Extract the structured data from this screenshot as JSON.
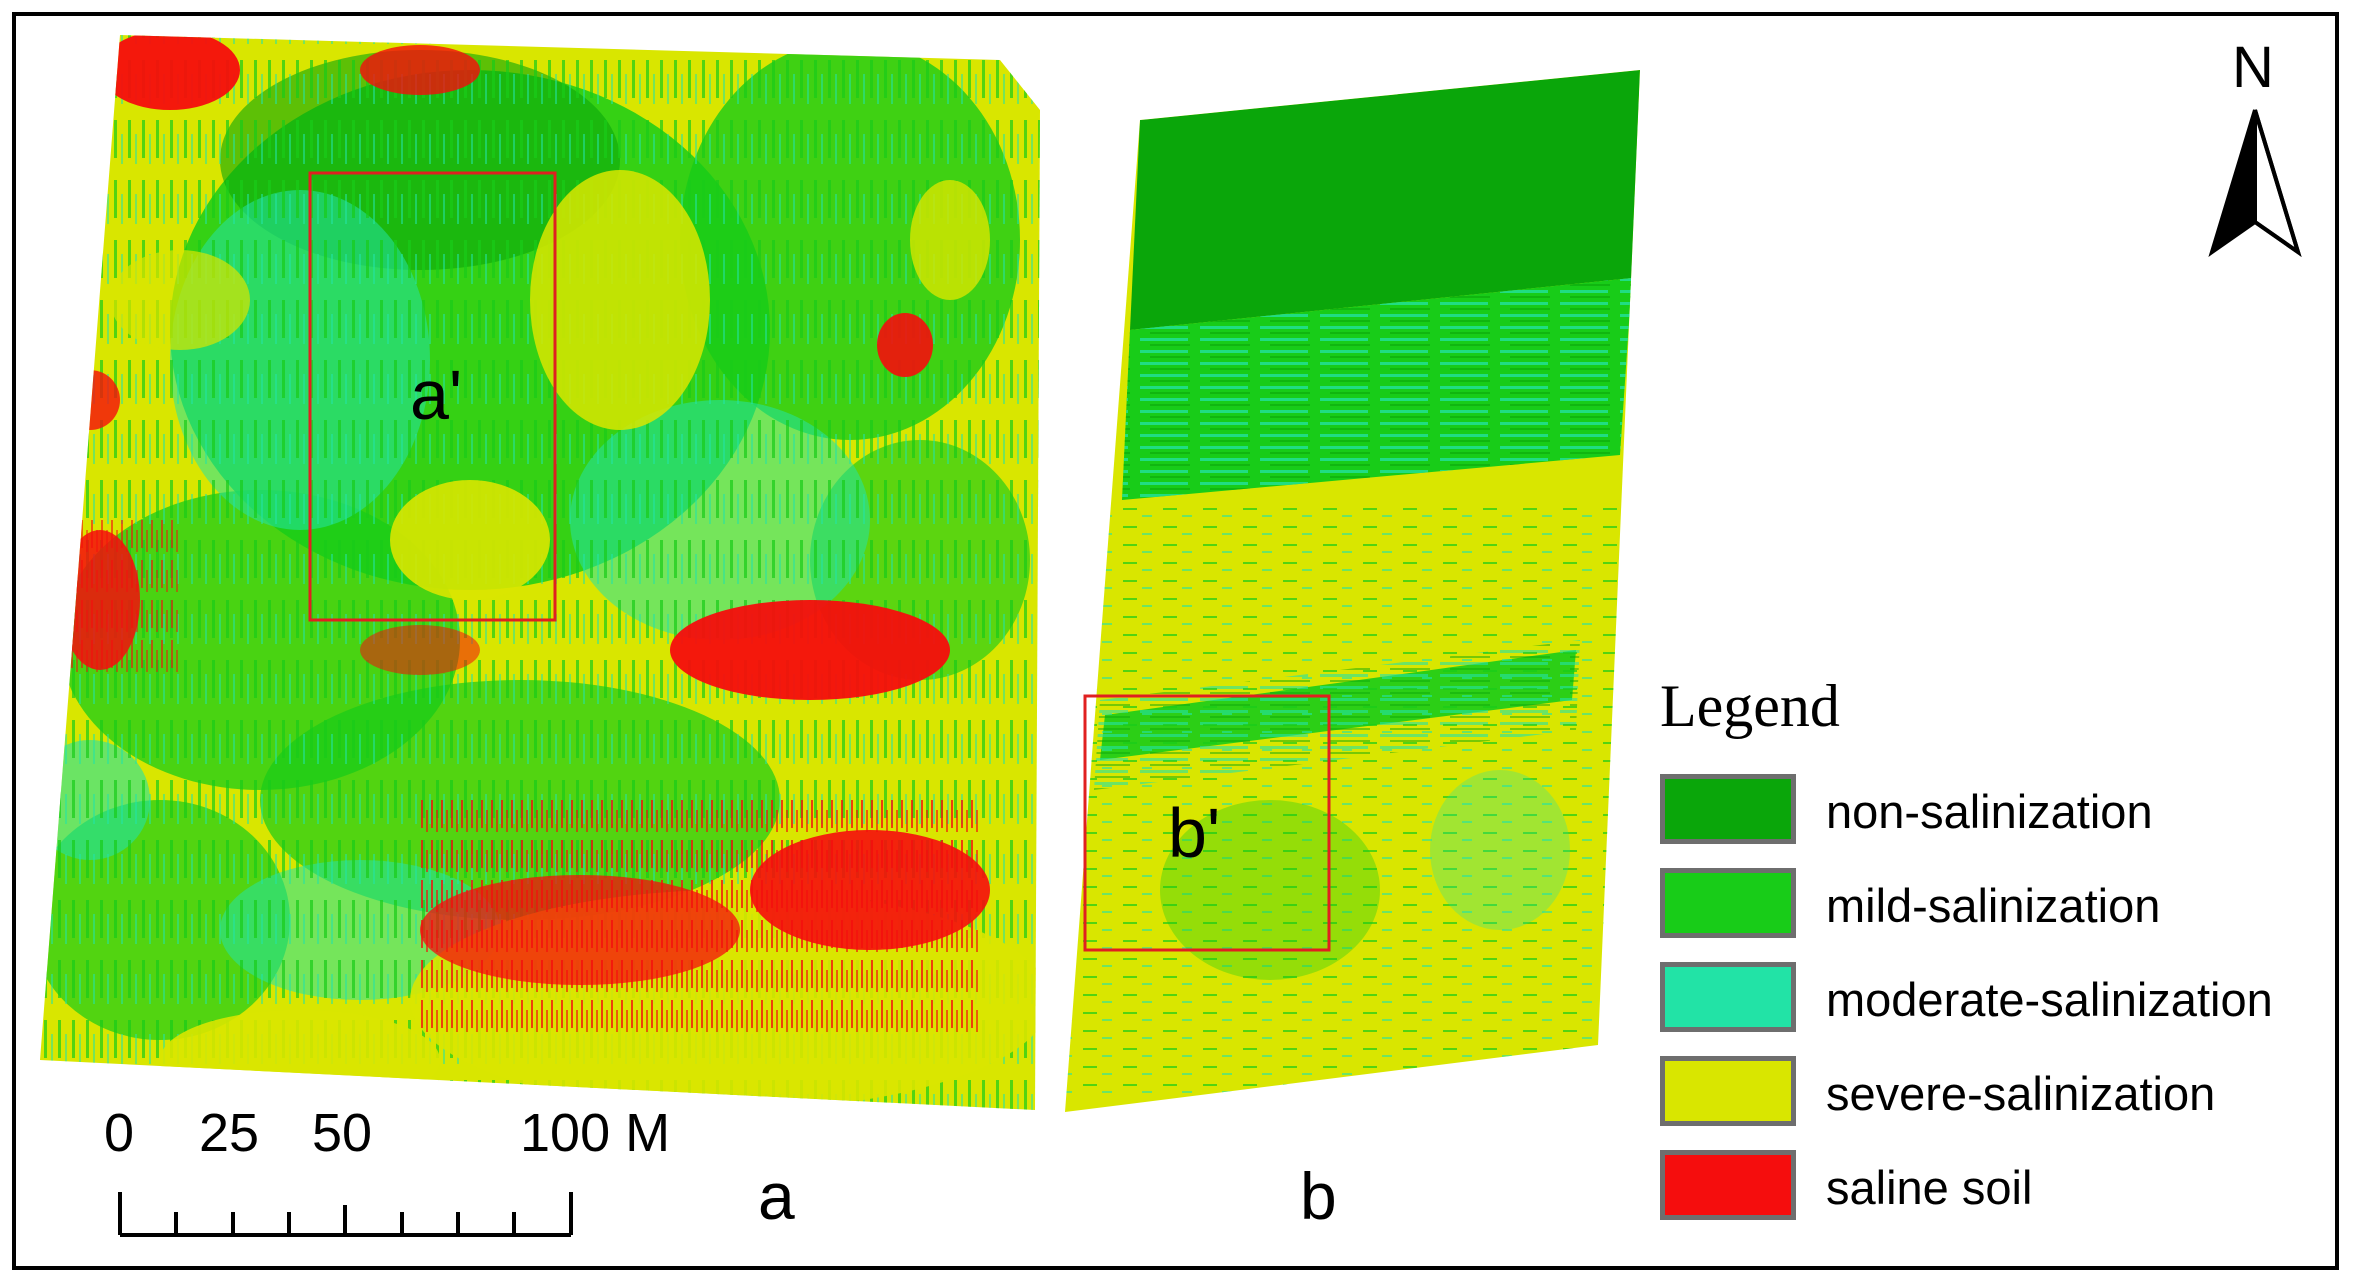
{
  "panels": {
    "a": {
      "label": "a",
      "inset_label": "a'"
    },
    "b": {
      "label": "b",
      "inset_label": "b'"
    }
  },
  "north_arrow": {
    "label": "N"
  },
  "scale_bar": {
    "ticks": [
      "0",
      "25",
      "50",
      "100 M"
    ]
  },
  "legend": {
    "title": "Legend",
    "items": [
      {
        "label": "non-salinization",
        "color": "#0aa60a"
      },
      {
        "label": "mild-salinization",
        "color": "#18cc18"
      },
      {
        "label": "moderate-salinization",
        "color": "#22e3a6"
      },
      {
        "label": "severe-salinization",
        "color": "#d9e600"
      },
      {
        "label": "saline soil",
        "color": "#f50d0d"
      }
    ]
  },
  "colors": {
    "inset_box": "#e02020",
    "frame": "#000000"
  }
}
